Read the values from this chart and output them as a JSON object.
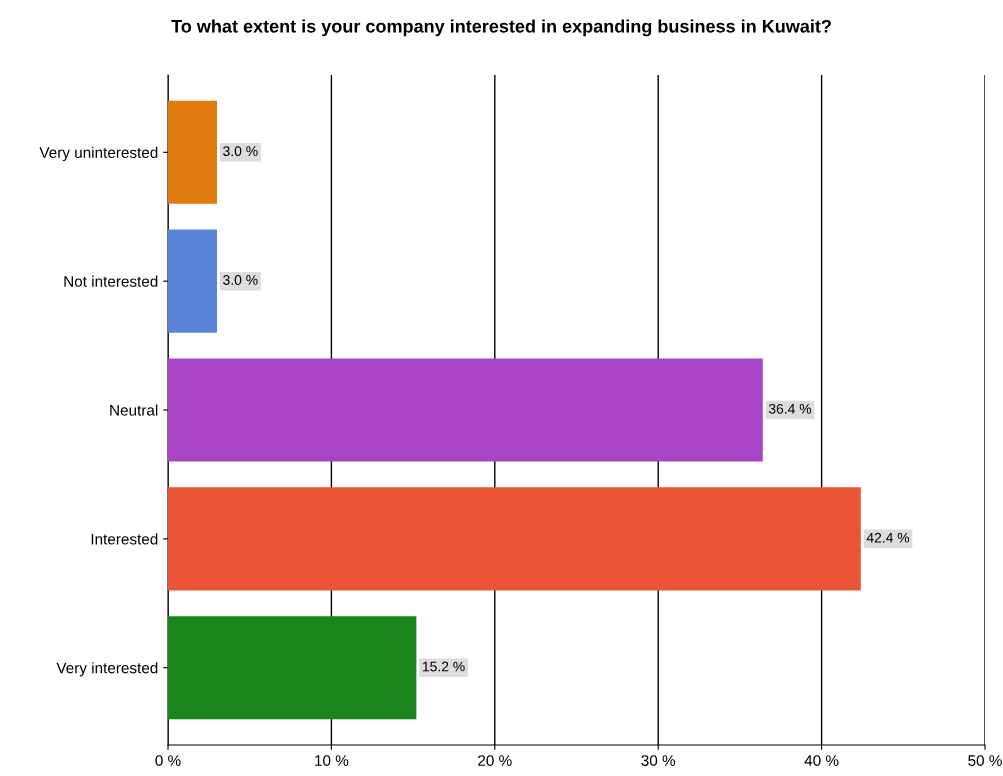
{
  "chart_data": {
    "type": "bar",
    "orientation": "horizontal",
    "title": "To what extent is your company interested in expanding business in Kuwait?",
    "categories": [
      "Very uninterested",
      "Not interested",
      "Neutral",
      "Interested",
      "Very interested"
    ],
    "values": [
      3.0,
      3.0,
      36.4,
      42.4,
      15.2
    ],
    "colors": [
      "#e07c10",
      "#5a84d8",
      "#a845c4",
      "#ea5535",
      "#19851c"
    ],
    "value_labels": [
      "3.0 %",
      "3.0 %",
      "36.4 %",
      "42.4 %",
      "15.2 %"
    ],
    "xlim": [
      0,
      50
    ],
    "xticks": [
      {
        "value": 0,
        "label": "0 %"
      },
      {
        "value": 10,
        "label": "10 %"
      },
      {
        "value": 20,
        "label": "20 %"
      },
      {
        "value": 30,
        "label": "30 %"
      },
      {
        "value": 40,
        "label": "40 %"
      },
      {
        "value": 50,
        "label": "50 %"
      }
    ],
    "grid": "x",
    "legend": false
  }
}
